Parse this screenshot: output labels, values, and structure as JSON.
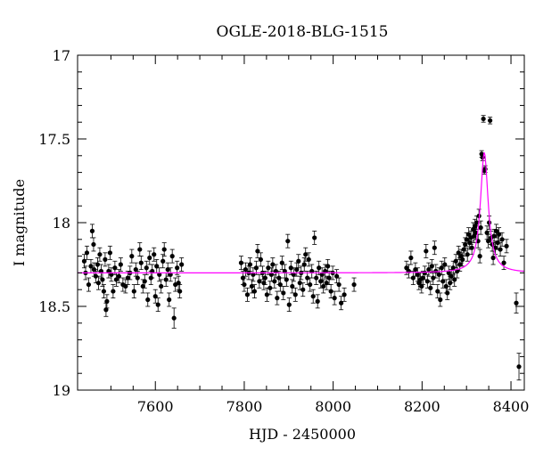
{
  "chart_data": {
    "type": "scatter",
    "title": "OGLE-2018-BLG-1515",
    "xlabel": "HJD - 2450000",
    "ylabel": "I magnitude",
    "xlim": [
      7425,
      8430
    ],
    "ylim": [
      17,
      19
    ],
    "y_inverted": true,
    "x_ticks": [
      7600,
      7800,
      8000,
      8200,
      8400
    ],
    "y_ticks": [
      17,
      17.5,
      18,
      18.5,
      19
    ],
    "x_tick_labels": [
      "7600",
      "7800",
      "8000",
      "8200",
      "8400"
    ],
    "y_tick_labels": [
      "17",
      "17.5",
      "18",
      "18.5",
      "19"
    ],
    "grid": false,
    "series": [
      {
        "marker": "filled-circle",
        "color": "#000000",
        "points": [
          [
            7440,
            18.23,
            0.04
          ],
          [
            7443,
            18.3,
            0.04
          ],
          [
            7446,
            18.18,
            0.04
          ],
          [
            7450,
            18.37,
            0.04
          ],
          [
            7455,
            18.26,
            0.04
          ],
          [
            7458,
            18.05,
            0.04
          ],
          [
            7461,
            18.13,
            0.04
          ],
          [
            7462,
            18.28,
            0.04
          ],
          [
            7466,
            18.32,
            0.04
          ],
          [
            7470,
            18.25,
            0.04
          ],
          [
            7472,
            18.36,
            0.04
          ],
          [
            7475,
            18.19,
            0.04
          ],
          [
            7478,
            18.29,
            0.04
          ],
          [
            7481,
            18.34,
            0.04
          ],
          [
            7484,
            18.41,
            0.04
          ],
          [
            7487,
            18.22,
            0.04
          ],
          [
            7489,
            18.52,
            0.04
          ],
          [
            7491,
            18.47,
            0.04
          ],
          [
            7495,
            18.29,
            0.04
          ],
          [
            7498,
            18.18,
            0.04
          ],
          [
            7501,
            18.31,
            0.04
          ],
          [
            7505,
            18.41,
            0.04
          ],
          [
            7509,
            18.27,
            0.04
          ],
          [
            7512,
            18.34,
            0.04
          ],
          [
            7518,
            18.32,
            0.04
          ],
          [
            7522,
            18.25,
            0.04
          ],
          [
            7527,
            18.37,
            0.04
          ],
          [
            7533,
            18.38,
            0.04
          ],
          [
            7538,
            18.33,
            0.04
          ],
          [
            7543,
            18.3,
            0.04
          ],
          [
            7547,
            18.2,
            0.04
          ],
          [
            7552,
            18.41,
            0.04
          ],
          [
            7556,
            18.28,
            0.04
          ],
          [
            7560,
            18.33,
            0.04
          ],
          [
            7565,
            18.16,
            0.04
          ],
          [
            7568,
            18.24,
            0.04
          ],
          [
            7572,
            18.38,
            0.04
          ],
          [
            7576,
            18.35,
            0.04
          ],
          [
            7580,
            18.27,
            0.04
          ],
          [
            7583,
            18.46,
            0.04
          ],
          [
            7587,
            18.21,
            0.04
          ],
          [
            7590,
            18.33,
            0.04
          ],
          [
            7593,
            18.29,
            0.04
          ],
          [
            7597,
            18.19,
            0.04
          ],
          [
            7600,
            18.44,
            0.04
          ],
          [
            7603,
            18.26,
            0.04
          ],
          [
            7606,
            18.49,
            0.04
          ],
          [
            7609,
            18.31,
            0.04
          ],
          [
            7613,
            18.38,
            0.04
          ],
          [
            7617,
            18.23,
            0.04
          ],
          [
            7620,
            18.16,
            0.04
          ],
          [
            7624,
            18.34,
            0.04
          ],
          [
            7628,
            18.28,
            0.04
          ],
          [
            7631,
            18.46,
            0.04
          ],
          [
            7634,
            18.31,
            0.04
          ],
          [
            7638,
            18.2,
            0.04
          ],
          [
            7642,
            18.57,
            0.06
          ],
          [
            7645,
            18.37,
            0.04
          ],
          [
            7649,
            18.27,
            0.04
          ],
          [
            7652,
            18.36,
            0.04
          ],
          [
            7655,
            18.41,
            0.04
          ],
          [
            7659,
            18.25,
            0.04
          ],
          [
            7793,
            18.24,
            0.04
          ],
          [
            7797,
            18.33,
            0.04
          ],
          [
            7800,
            18.37,
            0.04
          ],
          [
            7803,
            18.28,
            0.04
          ],
          [
            7807,
            18.43,
            0.04
          ],
          [
            7810,
            18.3,
            0.04
          ],
          [
            7813,
            18.25,
            0.04
          ],
          [
            7817,
            18.38,
            0.04
          ],
          [
            7820,
            18.31,
            0.04
          ],
          [
            7823,
            18.41,
            0.04
          ],
          [
            7827,
            18.27,
            0.04
          ],
          [
            7830,
            18.17,
            0.04
          ],
          [
            7834,
            18.35,
            0.04
          ],
          [
            7837,
            18.22,
            0.04
          ],
          [
            7841,
            18.3,
            0.04
          ],
          [
            7844,
            18.36,
            0.04
          ],
          [
            7847,
            18.33,
            0.04
          ],
          [
            7851,
            18.43,
            0.04
          ],
          [
            7854,
            18.27,
            0.04
          ],
          [
            7858,
            18.39,
            0.04
          ],
          [
            7861,
            18.31,
            0.04
          ],
          [
            7864,
            18.25,
            0.04
          ],
          [
            7868,
            18.35,
            0.04
          ],
          [
            7871,
            18.29,
            0.04
          ],
          [
            7874,
            18.45,
            0.04
          ],
          [
            7878,
            18.33,
            0.04
          ],
          [
            7881,
            18.37,
            0.04
          ],
          [
            7885,
            18.24,
            0.04
          ],
          [
            7888,
            18.42,
            0.04
          ],
          [
            7891,
            18.29,
            0.04
          ],
          [
            7895,
            18.34,
            0.04
          ],
          [
            7898,
            18.11,
            0.04
          ],
          [
            7901,
            18.49,
            0.04
          ],
          [
            7905,
            18.27,
            0.04
          ],
          [
            7908,
            18.38,
            0.04
          ],
          [
            7911,
            18.31,
            0.04
          ],
          [
            7915,
            18.43,
            0.04
          ],
          [
            7918,
            18.28,
            0.04
          ],
          [
            7922,
            18.23,
            0.04
          ],
          [
            7925,
            18.36,
            0.04
          ],
          [
            7928,
            18.3,
            0.04
          ],
          [
            7932,
            18.4,
            0.04
          ],
          [
            7935,
            18.25,
            0.04
          ],
          [
            7938,
            18.19,
            0.04
          ],
          [
            7942,
            18.33,
            0.04
          ],
          [
            7945,
            18.22,
            0.04
          ],
          [
            7948,
            18.37,
            0.04
          ],
          [
            7952,
            18.29,
            0.04
          ],
          [
            7955,
            18.44,
            0.04
          ],
          [
            7958,
            18.09,
            0.04
          ],
          [
            7962,
            18.33,
            0.04
          ],
          [
            7965,
            18.47,
            0.04
          ],
          [
            7968,
            18.27,
            0.04
          ],
          [
            7972,
            18.35,
            0.04
          ],
          [
            7975,
            18.31,
            0.04
          ],
          [
            7978,
            18.38,
            0.04
          ],
          [
            7982,
            18.29,
            0.04
          ],
          [
            7985,
            18.36,
            0.04
          ],
          [
            7988,
            18.26,
            0.04
          ],
          [
            7991,
            18.33,
            0.04
          ],
          [
            7995,
            18.41,
            0.04
          ],
          [
            7999,
            18.3,
            0.04
          ],
          [
            8003,
            18.45,
            0.04
          ],
          [
            8008,
            18.32,
            0.04
          ],
          [
            8013,
            18.37,
            0.04
          ],
          [
            8018,
            18.48,
            0.04
          ],
          [
            8025,
            18.43,
            0.04
          ],
          [
            8047,
            18.37,
            0.04
          ],
          [
            8165,
            18.27,
            0.04
          ],
          [
            8170,
            18.29,
            0.04
          ],
          [
            8175,
            18.21,
            0.04
          ],
          [
            8180,
            18.33,
            0.04
          ],
          [
            8185,
            18.28,
            0.04
          ],
          [
            8190,
            18.31,
            0.04
          ],
          [
            8193,
            18.36,
            0.04
          ],
          [
            8196,
            18.34,
            0.04
          ],
          [
            8199,
            18.38,
            0.04
          ],
          [
            8202,
            18.33,
            0.04
          ],
          [
            8206,
            18.3,
            0.04
          ],
          [
            8209,
            18.17,
            0.04
          ],
          [
            8212,
            18.35,
            0.04
          ],
          [
            8215,
            18.28,
            0.04
          ],
          [
            8219,
            18.39,
            0.04
          ],
          [
            8222,
            18.26,
            0.04
          ],
          [
            8225,
            18.33,
            0.04
          ],
          [
            8228,
            18.15,
            0.04
          ],
          [
            8231,
            18.29,
            0.04
          ],
          [
            8235,
            18.41,
            0.04
          ],
          [
            8238,
            18.31,
            0.04
          ],
          [
            8241,
            18.46,
            0.04
          ],
          [
            8244,
            18.27,
            0.04
          ],
          [
            8247,
            18.35,
            0.04
          ],
          [
            8251,
            18.25,
            0.04
          ],
          [
            8254,
            18.38,
            0.04
          ],
          [
            8257,
            18.42,
            0.04
          ],
          [
            8260,
            18.3,
            0.04
          ],
          [
            8263,
            18.36,
            0.04
          ],
          [
            8266,
            18.32,
            0.04
          ],
          [
            8270,
            18.27,
            0.04
          ],
          [
            8273,
            18.34,
            0.04
          ],
          [
            8276,
            18.23,
            0.04
          ],
          [
            8279,
            18.29,
            0.04
          ],
          [
            8282,
            18.18,
            0.04
          ],
          [
            8285,
            18.25,
            0.04
          ],
          [
            8288,
            18.2,
            0.04
          ],
          [
            8291,
            18.22,
            0.04
          ],
          [
            8294,
            18.16,
            0.04
          ],
          [
            8297,
            18.13,
            0.04
          ],
          [
            8300,
            18.1,
            0.04
          ],
          [
            8302,
            18.19,
            0.04
          ],
          [
            8305,
            18.07,
            0.04
          ],
          [
            8307,
            18.12,
            0.04
          ],
          [
            8310,
            18.09,
            0.04
          ],
          [
            8312,
            18.15,
            0.04
          ],
          [
            8315,
            18.04,
            0.04
          ],
          [
            8317,
            18.08,
            0.04
          ],
          [
            8319,
            18.02,
            0.04
          ],
          [
            8321,
            18.06,
            0.04
          ],
          [
            8323,
            18.0,
            0.04
          ],
          [
            8326,
            18.11,
            0.04
          ],
          [
            8328,
            17.96,
            0.04
          ],
          [
            8330,
            18.2,
            0.04
          ],
          [
            8332,
            18.03,
            0.04
          ],
          [
            8334,
            17.59,
            0.02
          ],
          [
            8336,
            17.61,
            0.02
          ],
          [
            8338,
            17.38,
            0.02
          ],
          [
            8340,
            17.69,
            0.02
          ],
          [
            8342,
            17.68,
            0.02
          ],
          [
            8346,
            18.06,
            0.04
          ],
          [
            8349,
            18.11,
            0.04
          ],
          [
            8351,
            18.0,
            0.04
          ],
          [
            8353,
            17.39,
            0.02
          ],
          [
            8355,
            18.09,
            0.04
          ],
          [
            8358,
            18.13,
            0.04
          ],
          [
            8360,
            18.21,
            0.04
          ],
          [
            8362,
            18.08,
            0.04
          ],
          [
            8365,
            18.15,
            0.04
          ],
          [
            8367,
            18.05,
            0.04
          ],
          [
            8370,
            18.12,
            0.04
          ],
          [
            8373,
            18.07,
            0.04
          ],
          [
            8376,
            18.16,
            0.04
          ],
          [
            8380,
            18.1,
            0.04
          ],
          [
            8384,
            18.24,
            0.04
          ],
          [
            8390,
            18.14,
            0.04
          ],
          [
            8412,
            18.48,
            0.06
          ],
          [
            8418,
            18.86,
            0.08
          ]
        ]
      },
      {
        "type": "line",
        "color": "#ff00ff",
        "model": {
          "baseline": 18.3,
          "t0": 8340,
          "peak": 17.58,
          "tE": 10.5
        }
      }
    ]
  }
}
